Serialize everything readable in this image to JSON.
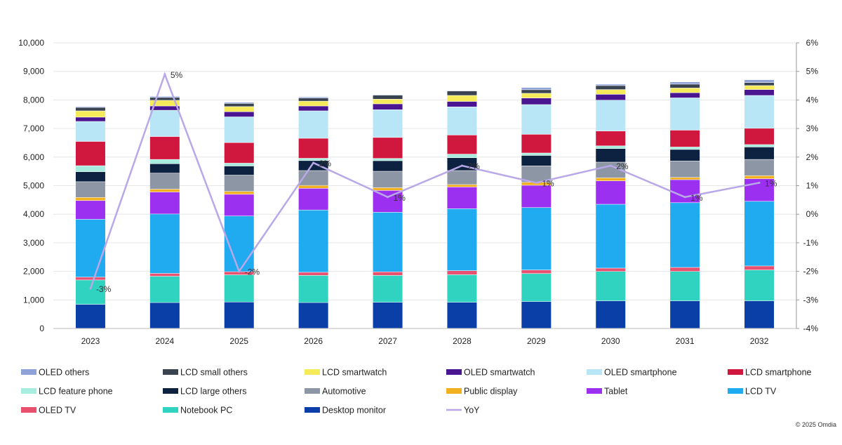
{
  "chart_data": {
    "type": "bar",
    "stacked": true,
    "categories": [
      "2023",
      "2024",
      "2025",
      "2026",
      "2027",
      "2028",
      "2029",
      "2030",
      "2031",
      "2032"
    ],
    "ylim": [
      0,
      10000
    ],
    "yticks": [
      "0",
      "1,000",
      "2,000",
      "3,000",
      "4,000",
      "5,000",
      "6,000",
      "7,000",
      "8,000",
      "9,000",
      "10,000"
    ],
    "y2lim": [
      -4,
      6
    ],
    "y2ticks": [
      "-4%",
      "-3%",
      "-2%",
      "-1%",
      "0%",
      "1%",
      "2%",
      "3%",
      "4%",
      "5%",
      "6%"
    ],
    "grid": true,
    "legend_position": "bottom",
    "series": [
      {
        "name": "Desktop monitor",
        "color": "#0b3fa8",
        "values": [
          835,
          900,
          920,
          900,
          910,
          910,
          935,
          960,
          960,
          960
        ]
      },
      {
        "name": "Notebook PC",
        "color": "#2fd3c0",
        "values": [
          855,
          920,
          950,
          950,
          940,
          965,
          980,
          1030,
          1030,
          1080
        ]
      },
      {
        "name": "OLED TV",
        "color": "#e8506f",
        "values": [
          100,
          100,
          110,
          110,
          125,
          140,
          125,
          115,
          140,
          140
        ]
      },
      {
        "name": "LCD TV",
        "color": "#20aaf0",
        "values": [
          2025,
          2080,
          1950,
          2180,
          2085,
          2170,
          2185,
          2235,
          2265,
          2265
        ]
      },
      {
        "name": "Tablet",
        "color": "#9b30f0",
        "values": [
          655,
          770,
          760,
          760,
          765,
          760,
          780,
          820,
          805,
          790
        ]
      },
      {
        "name": "Public display",
        "color": "#f0b020",
        "values": [
          110,
          100,
          100,
          100,
          95,
          85,
          105,
          105,
          80,
          105
        ]
      },
      {
        "name": "Automotive",
        "color": "#8c96a5",
        "values": [
          550,
          560,
          570,
          520,
          575,
          490,
          575,
          550,
          575,
          570
        ]
      },
      {
        "name": "LCD large others",
        "color": "#0d2140",
        "values": [
          350,
          330,
          320,
          350,
          370,
          450,
          365,
          475,
          405,
          435
        ]
      },
      {
        "name": "LCD feature phone",
        "color": "#a8ecdf",
        "values": [
          210,
          150,
          100,
          80,
          80,
          125,
          85,
          95,
          85,
          85
        ]
      },
      {
        "name": "LCD smartphone",
        "color": "#d0183f",
        "values": [
          850,
          800,
          720,
          700,
          735,
          670,
          655,
          520,
          590,
          570
        ]
      },
      {
        "name": "OLED smartphone",
        "color": "#b8e6f6",
        "values": [
          700,
          920,
          900,
          960,
          970,
          985,
          1040,
          1080,
          1130,
          1150
        ]
      },
      {
        "name": "OLED smartwatch",
        "color": "#4a1590",
        "values": [
          150,
          150,
          180,
          170,
          205,
          190,
          230,
          205,
          180,
          205
        ]
      },
      {
        "name": "LCD smartwatch",
        "color": "#f4ea5a",
        "values": [
          220,
          200,
          180,
          170,
          165,
          210,
          165,
          165,
          165,
          140
        ]
      },
      {
        "name": "LCD small others",
        "color": "#3a4450",
        "values": [
          120,
          100,
          110,
          110,
          140,
          155,
          125,
          140,
          135,
          105
        ]
      },
      {
        "name": "OLED others",
        "color": "#8ea2d8",
        "values": [
          30,
          40,
          40,
          40,
          20,
          20,
          80,
          50,
          80,
          100
        ]
      }
    ],
    "line_series": {
      "name": "YoY",
      "color": "#b9a8e8",
      "axis": "right",
      "values": [
        -2.6,
        4.9,
        -2.0,
        1.8,
        0.6,
        1.7,
        1.1,
        1.7,
        0.6,
        1.1
      ],
      "labels": [
        "-3%",
        "5%",
        "-2%",
        "2%",
        "1%",
        "2%",
        "1%",
        "2%",
        "1%",
        "1%"
      ]
    },
    "legend_order": [
      "OLED others",
      "LCD small others",
      "LCD smartwatch",
      "OLED smartwatch",
      "OLED smartphone",
      "LCD smartphone",
      "LCD feature phone",
      "LCD large others",
      "Automotive",
      "Public display",
      "Tablet",
      "LCD TV",
      "OLED TV",
      "Notebook PC",
      "Desktop monitor",
      "YoY"
    ]
  },
  "footer": {
    "copyright": "© 2025 Omdia"
  }
}
